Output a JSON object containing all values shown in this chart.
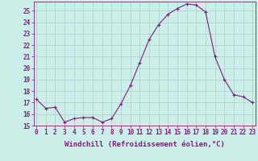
{
  "x": [
    0,
    1,
    2,
    3,
    4,
    5,
    6,
    7,
    8,
    9,
    10,
    11,
    12,
    13,
    14,
    15,
    16,
    17,
    18,
    19,
    20,
    21,
    22,
    23
  ],
  "y": [
    17.3,
    16.5,
    16.6,
    15.3,
    15.6,
    15.7,
    15.7,
    15.3,
    15.6,
    16.9,
    18.5,
    20.5,
    22.5,
    23.8,
    24.7,
    25.2,
    25.6,
    25.5,
    24.9,
    21.0,
    19.0,
    17.7,
    17.5,
    17.0
  ],
  "line_color": "#7b1f7b",
  "marker": "+",
  "marker_size": 3,
  "bg_color": "#cceee8",
  "grid_color": "#aacccc",
  "xlabel": "Windchill (Refroidissement éolien,°C)",
  "ylim": [
    15,
    25.8
  ],
  "xlim": [
    -0.3,
    23.3
  ],
  "yticks": [
    15,
    16,
    17,
    18,
    19,
    20,
    21,
    22,
    23,
    24,
    25
  ],
  "xticks": [
    0,
    1,
    2,
    3,
    4,
    5,
    6,
    7,
    8,
    9,
    10,
    11,
    12,
    13,
    14,
    15,
    16,
    17,
    18,
    19,
    20,
    21,
    22,
    23
  ],
  "tick_label_fontsize": 5.5,
  "xlabel_fontsize": 6.5,
  "axis_color": "#7b1f7b",
  "tick_color": "#7b1f7b"
}
